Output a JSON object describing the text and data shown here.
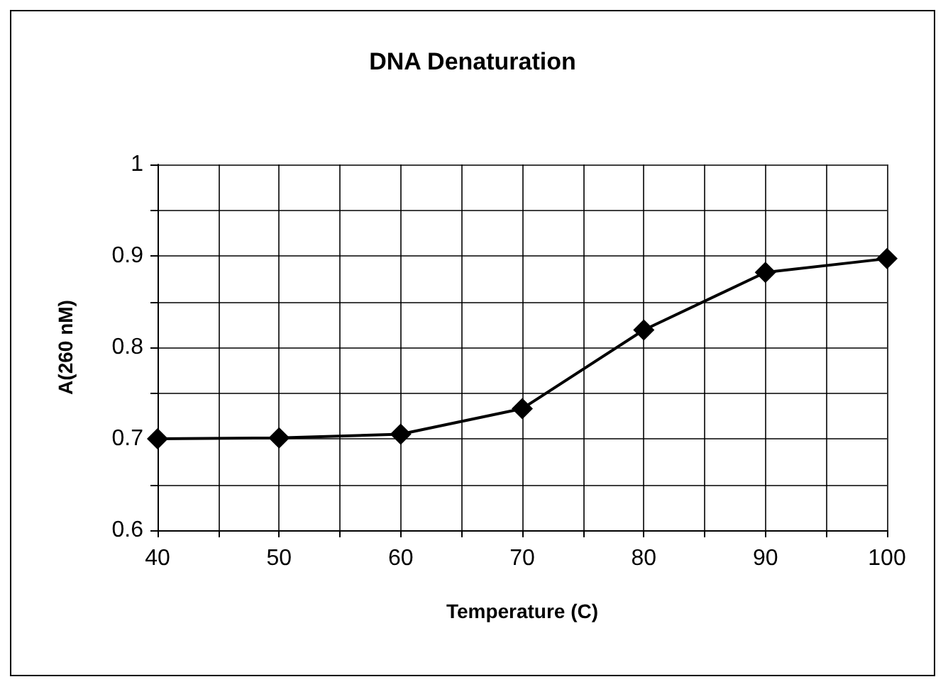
{
  "chart_data": {
    "type": "line",
    "title": "DNA Denaturation",
    "xlabel": "Temperature (C)",
    "ylabel": "A(260 nM)",
    "x": [
      40,
      50,
      60,
      70,
      80,
      90,
      100
    ],
    "series": [
      {
        "color": "#000000",
        "values": [
          0.7,
          0.701,
          0.705,
          0.733,
          0.819,
          0.882,
          0.897
        ]
      }
    ],
    "xlim": [
      40,
      100
    ],
    "xticks": [
      40,
      {
        "value": 45,
        "label": null
      },
      50,
      {
        "value": 55,
        "label": null
      },
      60,
      {
        "value": 65,
        "label": null
      },
      70,
      {
        "value": 75,
        "label": null
      },
      80,
      {
        "value": 85,
        "label": null
      },
      90,
      {
        "value": 95,
        "label": null
      },
      100
    ],
    "ylim": [
      0.6,
      1
    ],
    "yticks": [
      0.6,
      {
        "value": 0.65,
        "label": null
      },
      0.7,
      {
        "value": 0.75,
        "label": null
      },
      0.8,
      {
        "value": 0.85,
        "label": null
      },
      0.9,
      {
        "value": 0.95,
        "label": null
      },
      1
    ],
    "grid": true,
    "marker": "diamond",
    "line_style": "solid"
  }
}
